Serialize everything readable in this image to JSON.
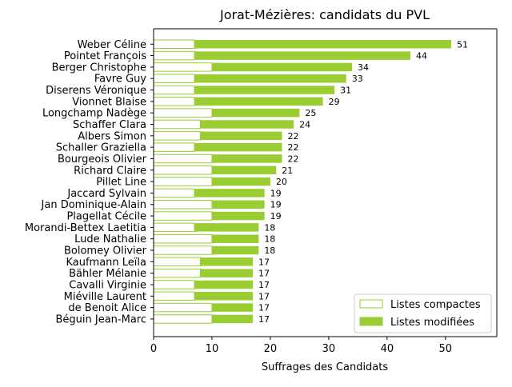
{
  "chart_data": {
    "type": "bar",
    "orientation": "horizontal",
    "stacked": true,
    "title": "Jorat-Mézières: candidats du PVL",
    "xlabel": "Suffrages des Candidats",
    "ylabel": "",
    "xlim": [
      0,
      58.8
    ],
    "xticks": [
      "0",
      "10",
      "20",
      "30",
      "40",
      "50"
    ],
    "xtick_values": [
      0,
      10,
      20,
      30,
      40,
      50
    ],
    "grid": false,
    "legend_position": "lower-right",
    "categories": [
      "Weber Céline",
      "Pointet François",
      "Berger Christophe",
      "Favre Guy",
      "Diserens Véronique",
      "Vionnet Blaise",
      "Longchamp Nadège",
      "Schaffer Clara",
      "Albers Simon",
      "Schaller Graziella",
      "Bourgeois Olivier",
      "Richard Claire",
      "Pillet Line",
      "Jaccard Sylvain",
      "Jan Dominique-Alain",
      "Plagellat Cécile",
      "Morandi-Bettex Laetitia",
      "Lude Nathalie",
      "Bolomey Olivier",
      "Kaufmann Leïla",
      "Bähler Mélanie",
      "Cavalli Virginie",
      "Miéville Laurent",
      "de Benoit Alice",
      "Béguin Jean-Marc"
    ],
    "totals": [
      51,
      44,
      34,
      33,
      31,
      29,
      25,
      24,
      22,
      22,
      22,
      21,
      20,
      19,
      19,
      19,
      18,
      18,
      18,
      17,
      17,
      17,
      17,
      17,
      17
    ],
    "total_labels": [
      "51",
      "44",
      "34",
      "33",
      "31",
      "29",
      "25",
      "24",
      "22",
      "22",
      "22",
      "21",
      "20",
      "19",
      "19",
      "19",
      "18",
      "18",
      "18",
      "17",
      "17",
      "17",
      "17",
      "17",
      "17"
    ],
    "series": [
      {
        "name": "Listes compactes",
        "color": "#ffffff",
        "edge_color": "#9acd32",
        "values": [
          7,
          7,
          10,
          7,
          7,
          7,
          10,
          8,
          8,
          7,
          10,
          10,
          10,
          7,
          10,
          10,
          7,
          10,
          10,
          8,
          8,
          7,
          7,
          10,
          10
        ]
      },
      {
        "name": "Listes modifiées",
        "color": "#9acd32",
        "edge_color": "#9acd32",
        "values": [
          44,
          37,
          24,
          26,
          24,
          22,
          15,
          16,
          14,
          15,
          12,
          11,
          10,
          12,
          9,
          9,
          11,
          8,
          8,
          9,
          9,
          10,
          10,
          7,
          7
        ]
      }
    ]
  }
}
